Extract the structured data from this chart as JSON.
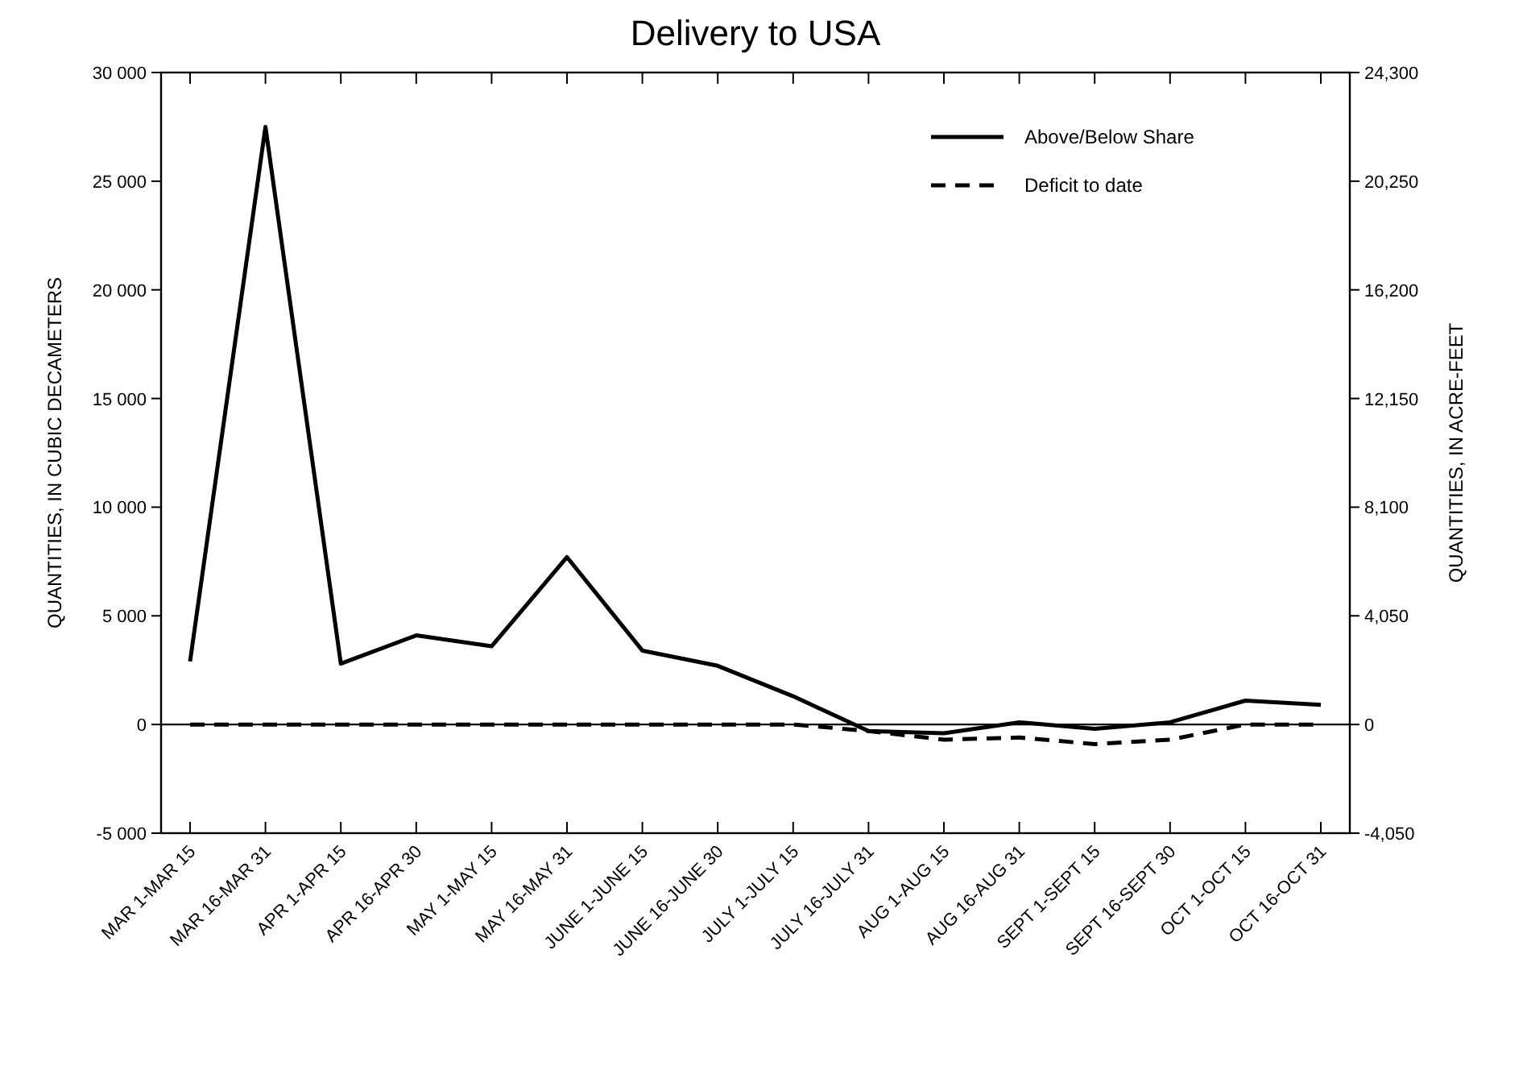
{
  "chart_data": {
    "type": "line",
    "title": "Delivery to USA",
    "ylabel": "QUANTITIES, IN CUBIC DECAMETERS",
    "y2label": "QUANTITIES, IN ACRE-FEET",
    "categories": [
      "MAR 1-MAR 15",
      "MAR 16-MAR 31",
      "APR 1-APR 15",
      "APR 16-APR 30",
      "MAY 1-MAY 15",
      "MAY 16-MAY 31",
      "JUNE 1-JUNE 15",
      "JUNE 16-JUNE 30",
      "JULY 1-JULY 15",
      "JULY 16-JULY 31",
      "AUG 1-AUG 15",
      "AUG 16-AUG 31",
      "SEPT 1-SEPT 15",
      "SEPT 16-SEPT 30",
      "OCT 1-OCT 15",
      "OCT 16-OCT 31"
    ],
    "series": [
      {
        "name": "Above/Below Share",
        "color": "#000000",
        "line_style": "solid",
        "values": [
          2900,
          27500,
          2800,
          4100,
          3600,
          7700,
          3400,
          2700,
          1300,
          -300,
          -400,
          100,
          -200,
          100,
          1100,
          900
        ]
      },
      {
        "name": "Deficit to date",
        "color": "#000000",
        "line_style": "dashed",
        "values": [
          0,
          0,
          0,
          0,
          0,
          0,
          0,
          0,
          0,
          -300,
          -700,
          -600,
          -900,
          -700,
          0,
          0
        ]
      }
    ],
    "ylim": [
      -5000,
      30000
    ],
    "yticks": [
      {
        "value": -5000,
        "label": "-5 000"
      },
      0,
      {
        "value": 5000,
        "label": "5 000"
      },
      {
        "value": 10000,
        "label": "10 000"
      },
      {
        "value": 15000,
        "label": "15 000"
      },
      {
        "value": 20000,
        "label": "20 000"
      },
      {
        "value": 25000,
        "label": "25 000"
      },
      {
        "value": 30000,
        "label": "30 000"
      }
    ],
    "y2lim": [
      -4050,
      24300
    ],
    "y2ticks": [
      {
        "value": -4050,
        "label": "-4,050"
      },
      0,
      {
        "value": 4050,
        "label": "4,050"
      },
      {
        "value": 8100,
        "label": "8,100"
      },
      {
        "value": 12150,
        "label": "12,150"
      },
      {
        "value": 16200,
        "label": "16,200"
      },
      {
        "value": 20250,
        "label": "20,250"
      },
      {
        "value": 24300,
        "label": "24,300"
      }
    ],
    "ref_lines": [
      {
        "axis": "y",
        "value": 0,
        "color": "#000000"
      }
    ],
    "grid": false,
    "legend": "top right",
    "marker": "none"
  }
}
